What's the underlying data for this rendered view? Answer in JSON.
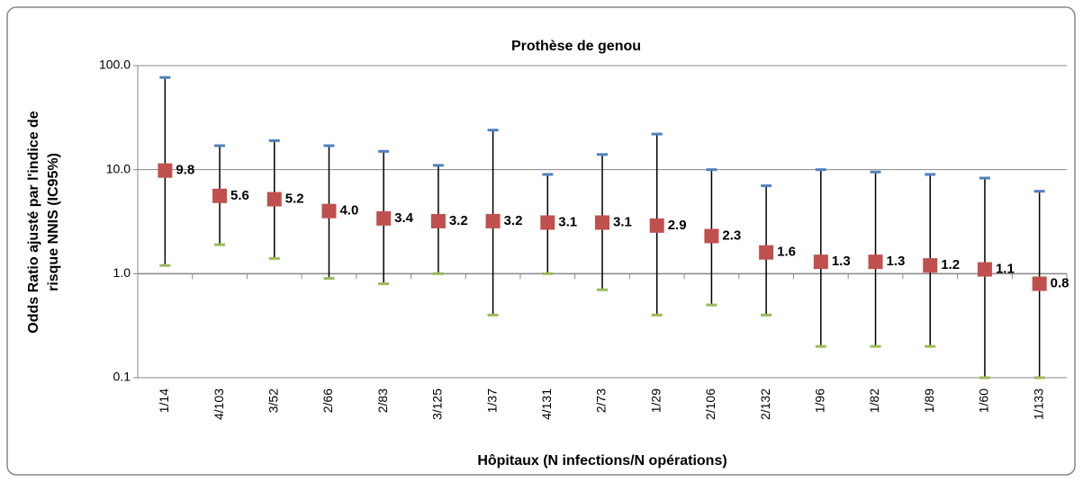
{
  "chart_data": {
    "type": "errorpoint",
    "title": "Prothèse de genou",
    "y_label": [
      "Odds Ratio ajusté par l'indice de",
      "risque NNIS (IC95%)"
    ],
    "x_label": "Hôpitaux (N infections/N opérations)",
    "categories": [
      "1/14",
      "4/103",
      "3/52",
      "2/66",
      "2/83",
      "3/125",
      "1/37",
      "4/131",
      "2/73",
      "1/29",
      "2/106",
      "2/132",
      "1/96",
      "1/82",
      "1/89",
      "1/60",
      "1/133"
    ],
    "series": [
      {
        "color": "#c0504d",
        "upper_color": "#4f81bd",
        "lower_color": "#9bbb59",
        "values": [
          9.8,
          5.6,
          5.2,
          4.0,
          3.4,
          3.2,
          3.2,
          3.1,
          3.1,
          2.9,
          2.3,
          1.6,
          1.3,
          1.3,
          1.2,
          1.1,
          0.8
        ],
        "value_labels": [
          "9.8",
          "5.6",
          "5.2",
          "4.0",
          "3.4",
          "3.2",
          "3.2",
          "3.1",
          "3.1",
          "2.9",
          "2.3",
          "1.6",
          "1.3",
          "1.3",
          "1.2",
          "1.1",
          "0.8"
        ],
        "lower": [
          1.2,
          1.9,
          1.4,
          0.9,
          0.8,
          1.0,
          0.4,
          1.0,
          0.7,
          0.4,
          0.5,
          0.4,
          0.2,
          0.2,
          0.2,
          0.1,
          0.1
        ],
        "upper": [
          77,
          17,
          19,
          17,
          15,
          11,
          24,
          9,
          14,
          22,
          10,
          7,
          10,
          9.5,
          9,
          8.3,
          6.2
        ]
      }
    ],
    "log_scale": true,
    "x_axis_crosses": 1,
    "ylim": [
      0.1,
      100
    ],
    "yticks": [
      {
        "value": 100,
        "label": "100.0"
      },
      {
        "value": 10,
        "label": "10.0"
      },
      {
        "value": 1,
        "label": "1.0"
      },
      0.1
    ],
    "grid": true
  }
}
